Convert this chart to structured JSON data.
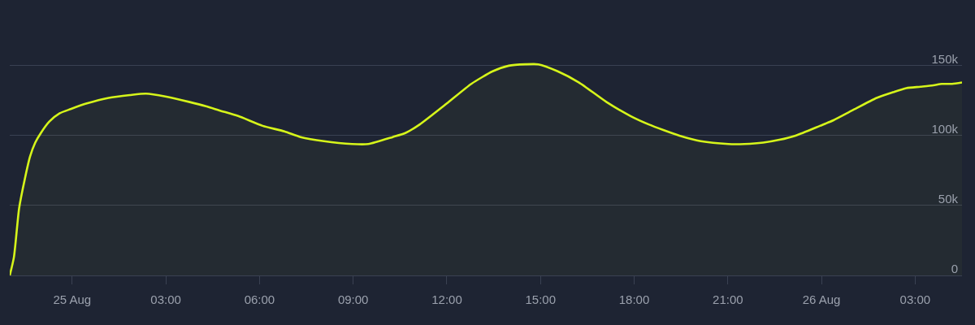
{
  "chart_data": {
    "type": "area",
    "x": [
      "--08-24T22:00",
      "--08-24T22:08",
      "--08-24T22:18",
      "--08-24T22:29",
      "--08-24T22:39",
      "--08-24T22:49",
      "--08-24T23:00",
      "--08-24T23:16",
      "--08-24T23:36",
      "--08-24T23:57",
      "--08-25T00:28",
      "--08-25T01:10",
      "--08-25T01:51",
      "--08-25T02:22",
      "--08-25T02:59",
      "--08-25T03:46",
      "--08-25T04:17",
      "--08-25T04:43",
      "--08-25T05:19",
      "--08-25T06:06",
      "--08-25T06:48",
      "--08-25T07:19",
      "--08-25T08:04",
      "--08-25T08:58",
      "--08-25T09:29",
      "--08-25T10:16",
      "--08-25T10:41",
      "--08-25T11:08",
      "--08-25T12:00",
      "--08-25T12:47",
      "--08-25T13:28",
      "--08-25T13:59",
      "--08-25T14:31",
      "--08-25T14:56",
      "--08-25T15:33",
      "--08-25T16:14",
      "--08-25T17:07",
      "--08-25T17:53",
      "--08-25T18:28",
      "--08-25T18:56",
      "--08-25T19:27",
      "--08-25T20:08",
      "--08-25T21:01",
      "--08-25T21:32",
      "--08-25T22:08",
      "--08-25T22:39",
      "--08-25T23:10",
      "--08-25T23:57",
      "--08-26T00:23",
      "--08-26T00:59",
      "--08-26T01:46",
      "--08-26T02:17",
      "--08-26T02:43",
      "--08-26T03:10",
      "--08-26T03:35",
      "--08-26T03:51",
      "--08-26T04:11",
      "--08-26T04:30"
    ],
    "series": [
      {
        "color": "#d6f51a",
        "values": [
          0,
          13000,
          48000,
          69000,
          85000,
          95000,
          102000,
          110000,
          116000,
          119000,
          123000,
          127000,
          129000,
          130000,
          128000,
          124000,
          121000,
          118000,
          114000,
          107000,
          103000,
          99000,
          96000,
          94000,
          94000,
          99000,
          102000,
          108000,
          123000,
          137000,
          146000,
          150000,
          151000,
          151000,
          146000,
          138000,
          124000,
          114000,
          108000,
          104000,
          100000,
          96000,
          94000,
          94000,
          95000,
          97000,
          100000,
          107000,
          111000,
          118000,
          127000,
          131000,
          134000,
          135000,
          136000,
          137000,
          137000,
          138000
        ]
      }
    ],
    "xlim": [
      "--08-24T22:00",
      "--08-26T04:30"
    ],
    "xticks": [
      {
        "value": "--08-25T00:00",
        "label": "25 Aug"
      },
      {
        "value": "--08-25T03:00",
        "label": "03:00"
      },
      {
        "value": "--08-25T06:00",
        "label": "06:00"
      },
      {
        "value": "--08-25T09:00",
        "label": "09:00"
      },
      {
        "value": "--08-25T12:00",
        "label": "12:00"
      },
      {
        "value": "--08-25T15:00",
        "label": "15:00"
      },
      {
        "value": "--08-25T18:00",
        "label": "18:00"
      },
      {
        "value": "--08-25T21:00",
        "label": "21:00"
      },
      {
        "value": "--08-26T00:00",
        "label": "26 Aug"
      },
      {
        "value": "--08-26T03:00",
        "label": "03:00"
      }
    ],
    "ylim": [
      0,
      197000
    ],
    "yticks": [
      0,
      {
        "value": 50000,
        "label": "50k"
      },
      {
        "value": 100000,
        "label": "100k"
      },
      {
        "value": 150000,
        "label": "150k"
      }
    ],
    "grid": "y"
  }
}
